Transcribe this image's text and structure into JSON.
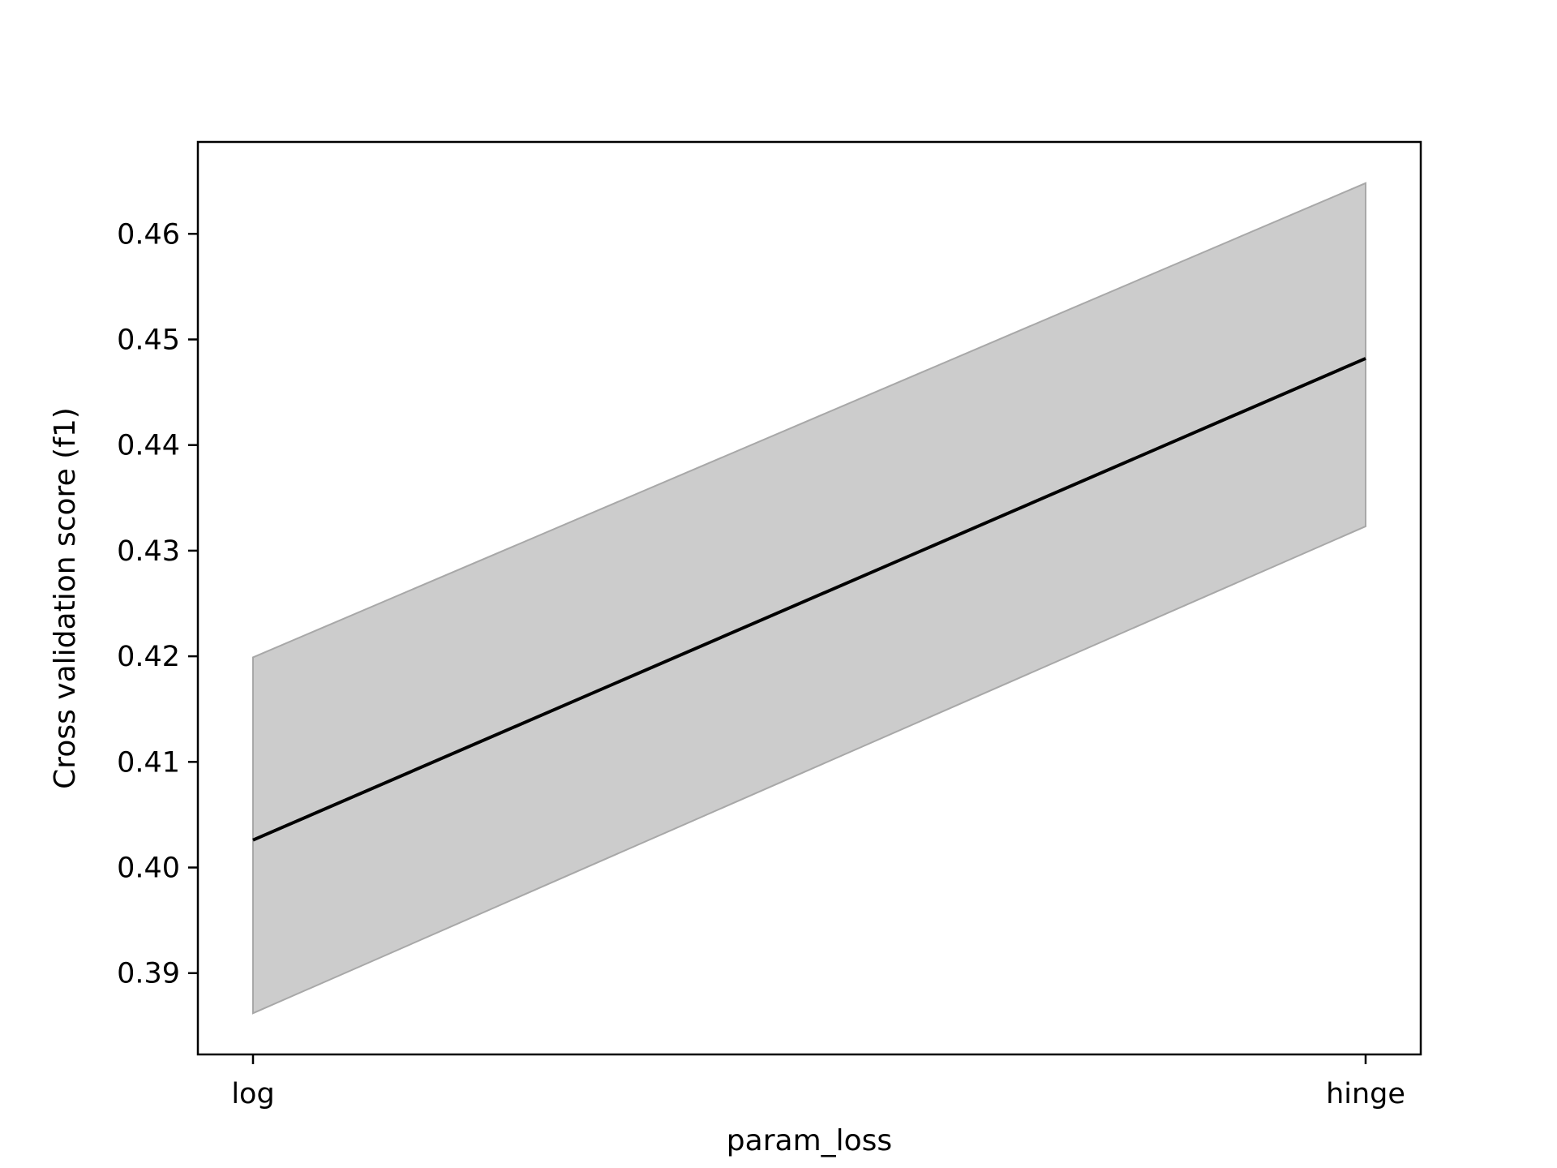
{
  "chart_data": {
    "type": "line",
    "title": "",
    "xlabel": "param_loss",
    "ylabel": "Cross validation score (f1)",
    "categories": [
      "log",
      "hinge"
    ],
    "series": [
      {
        "values": [
          0.4026,
          0.4482
        ],
        "lower": [
          0.3862,
          0.4323
        ],
        "upper": [
          0.4199,
          0.4648
        ]
      }
    ],
    "ylim": [
      0.3823,
      0.4687
    ],
    "yticks": [
      0.39,
      0.4,
      0.41,
      0.42,
      0.43,
      0.44,
      0.45,
      0.46
    ],
    "ytick_labels": [
      "0.39",
      "0.40",
      "0.41",
      "0.42",
      "0.43",
      "0.44",
      "0.45",
      "0.46"
    ],
    "grid": false,
    "line_color": "#000000",
    "band_color": "#cccccc",
    "band_edge_color": "#a8a8a8"
  }
}
